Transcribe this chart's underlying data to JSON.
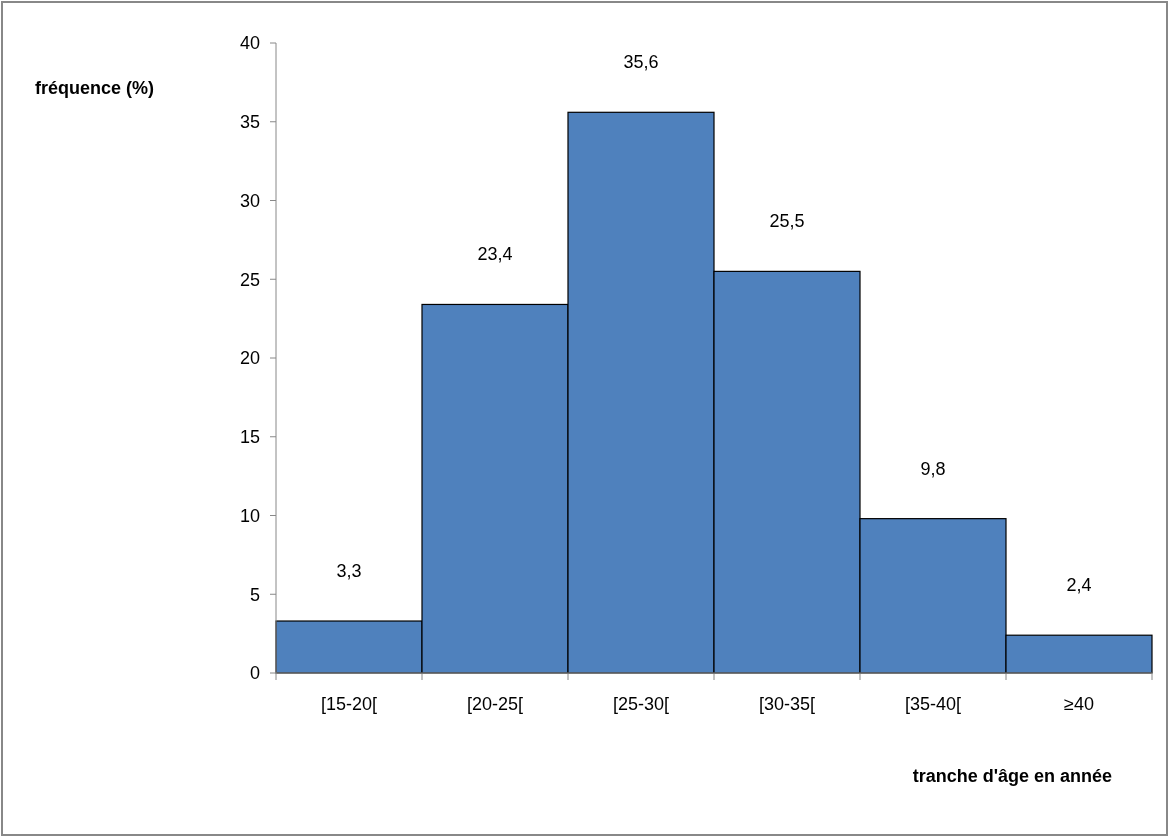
{
  "chart_data": {
    "type": "bar",
    "categories": [
      "[15-20[",
      "[20-25[",
      "[25-30[",
      "[30-35[",
      "[35-40[",
      "≥40"
    ],
    "values": [
      3.3,
      23.4,
      35.6,
      25.5,
      9.8,
      2.4
    ],
    "value_labels": [
      "3,3",
      "23,4",
      "35,6",
      "25,5",
      "9,8",
      "2,4"
    ],
    "color": "#4f81bd",
    "ylim": [
      0,
      40
    ],
    "yticks": [
      0,
      5,
      10,
      15,
      20,
      25,
      30,
      35,
      40
    ],
    "xlabel": "tranche d'âge en année",
    "ylabel": "fréquence (%)",
    "grid": false
  }
}
